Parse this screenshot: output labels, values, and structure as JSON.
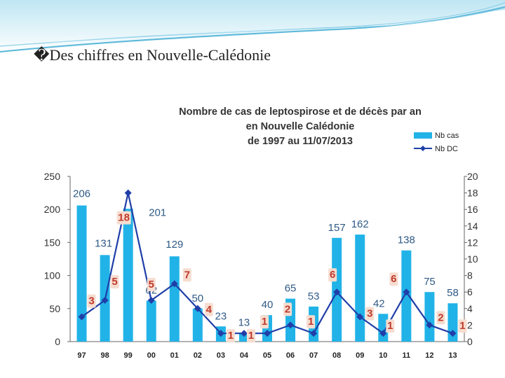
{
  "slide": {
    "title": "�Des chiffres en Nouvelle-Calédonie",
    "accent_color": "#5ab7d9"
  },
  "chart_data": {
    "type": "bar",
    "title": [
      "Nombre de cas de leptospirose et de décès par an",
      "en Nouvelle Calédonie",
      "de 1997 au 11/07/2013"
    ],
    "categories": [
      "97",
      "98",
      "99",
      "00",
      "01",
      "02",
      "03",
      "04",
      "05",
      "06",
      "07",
      "08",
      "09",
      "10",
      "11",
      "12",
      "13"
    ],
    "series": [
      {
        "name": "Nb cas",
        "type": "bar",
        "axis": "left",
        "color": "#21b3e8",
        "values": [
          206,
          131,
          201,
          62,
          129,
          50,
          23,
          13,
          40,
          65,
          53,
          157,
          162,
          42,
          138,
          75,
          58
        ]
      },
      {
        "name": "Nb DC",
        "type": "line",
        "axis": "right",
        "color": "#1f3ea8",
        "values": [
          3,
          5,
          18,
          5,
          7,
          4,
          1,
          1,
          1,
          2,
          1,
          6,
          3,
          1,
          6,
          2,
          1
        ]
      }
    ],
    "left_axis": {
      "min": 0,
      "max": 250,
      "ticks": [
        "0",
        "50",
        "100",
        "150",
        "200",
        "250"
      ]
    },
    "right_axis": {
      "min": 0,
      "max": 20,
      "ticks": [
        "0",
        "2",
        "4",
        "6",
        "8",
        "10",
        "12",
        "14",
        "16",
        "18",
        "20"
      ]
    },
    "legend": {
      "position": "top-right",
      "entries": [
        "Nb cas",
        "Nb DC"
      ]
    },
    "bar_labels": [
      "206",
      "131",
      "201",
      "62",
      "129",
      "50",
      "23",
      "13",
      "40",
      "65",
      "53",
      "157",
      "162",
      "42",
      "138",
      "75",
      "58"
    ],
    "dc_labels": [
      "3",
      "5",
      "18",
      "5",
      "7",
      "4",
      "1",
      "1",
      "1",
      "2",
      "1",
      "6",
      "3",
      "1",
      "6",
      "2",
      "1"
    ],
    "grid": false
  }
}
